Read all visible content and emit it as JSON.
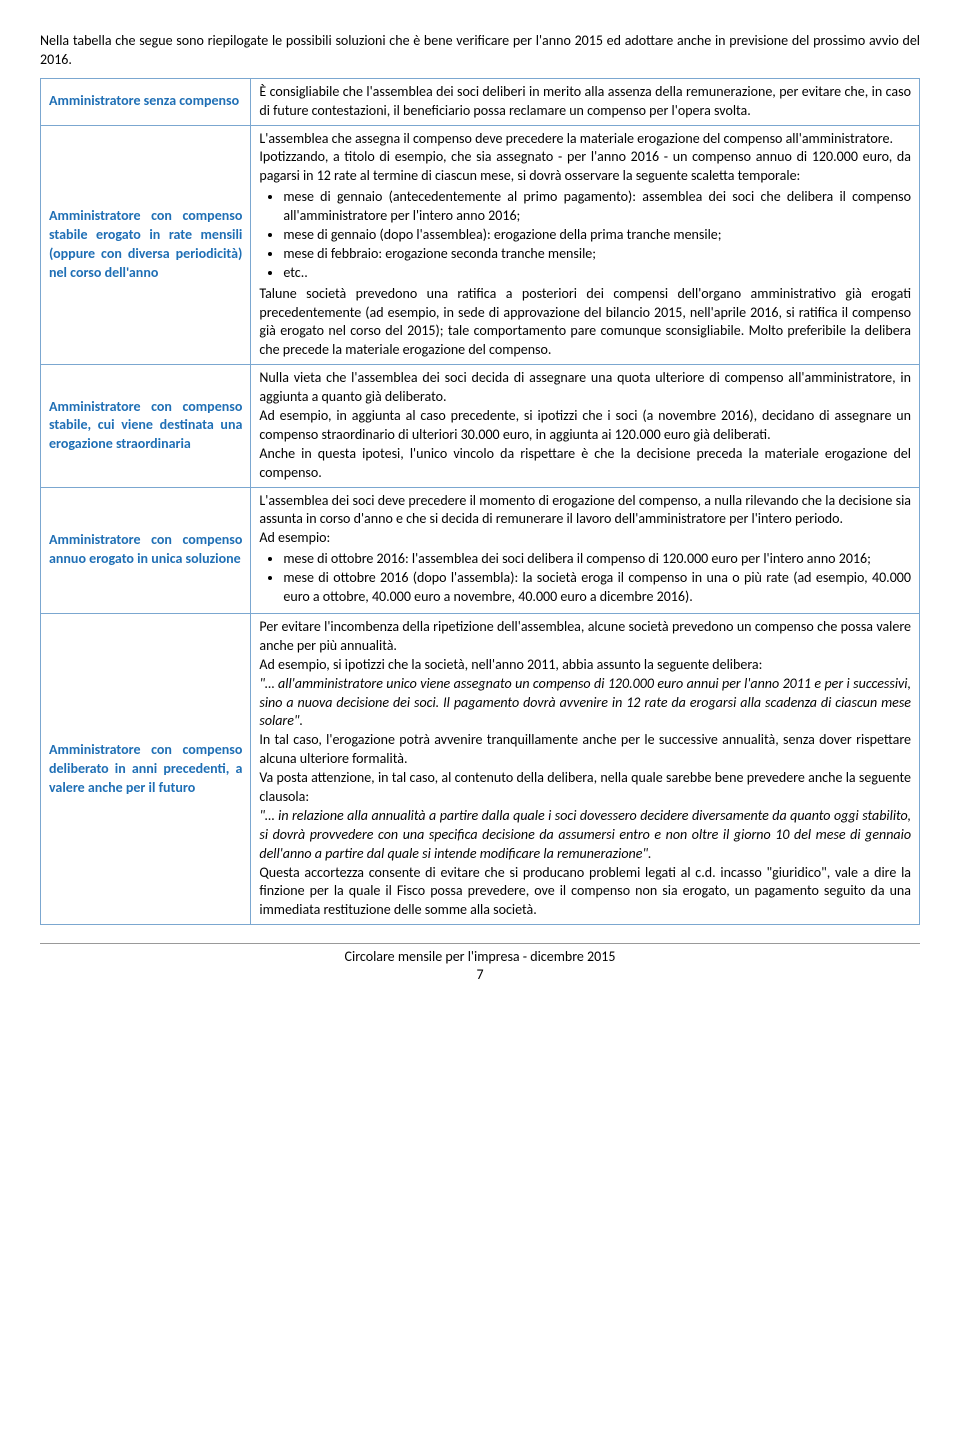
{
  "intro": "Nella tabella che segue sono riepilogate le possibili soluzioni che è bene verificare per l'anno 2015 ed adottare anche in previsione del prossimo avvio del 2016.",
  "rows": [
    {
      "left": "Amministratore senza compenso",
      "right_html": "È consigliabile che l'assemblea dei soci deliberi in merito alla assenza della remunerazione, per evitare che, in caso di future contestazioni, il beneficiario possa reclamare un compenso per l'opera svolta."
    },
    {
      "left": "Amministratore con compenso stabile erogato in rate mensili (oppure con diversa periodicità) nel corso dell'anno",
      "right_html": "L'assemblea che assegna il compenso deve precedere la materiale erogazione del compenso all'amministratore.<br>Ipotizzando, a titolo di esempio, che sia assegnato - per l'anno 2016 - un compenso annuo di 120.000 euro, da pagarsi in 12 rate al termine di ciascun mese, si dovrà osservare la seguente scaletta temporale:<ul><li>mese di gennaio (antecedentemente al primo pagamento): assemblea dei soci che delibera il compenso all'amministratore per l'intero anno 2016;</li><li>mese di gennaio (dopo l'assemblea): erogazione della prima tranche mensile;</li><li>mese di febbraio: erogazione seconda tranche mensile;</li><li>etc..</li></ul>Talune società prevedono una ratifica a posteriori dei compensi dell'organo amministrativo già erogati precedentemente (ad esempio, in sede di approvazione del bilancio 2015, nell'aprile 2016, si ratifica il compenso già erogato nel corso del 2015); tale comportamento pare comunque sconsigliabile. Molto preferibile la delibera che precede la materiale erogazione del compenso."
    },
    {
      "left": "Amministratore con compenso stabile, cui viene destinata una erogazione straordinaria",
      "right_html": "Nulla vieta che l'assemblea dei soci decida di assegnare una quota ulteriore di compenso all'amministratore, in aggiunta a quanto già deliberato.<br>Ad esempio, in aggiunta al caso precedente, si ipotizzi che i soci (a novembre 2016), decidano di assegnare un compenso straordinario di ulteriori 30.000 euro, in aggiunta ai 120.000 euro già deliberati.<br>Anche in questa ipotesi, l'unico vincolo da rispettare è che la decisione preceda la materiale erogazione del compenso."
    },
    {
      "left": "Amministratore con compenso annuo erogato in unica soluzione",
      "right_html": "L'assemblea dei soci deve precedere il momento di erogazione del compenso, a nulla rilevando che la decisione sia assunta in corso d'anno e che si decida di remunerare il lavoro dell'amministratore per l'intero periodo.<br>Ad esempio:<ul><li>mese di ottobre 2016: l'assemblea dei soci delibera il compenso di 120.000 euro per l'intero anno 2016;</li><li>mese di ottobre 2016 (dopo l'assembla): la società eroga il compenso in una o più rate (ad esempio, 40.000 euro a ottobre, 40.000 euro a novembre, 40.000 euro a dicembre 2016).</li></ul>"
    },
    {
      "left": "Amministratore con compenso deliberato in anni precedenti, a valere anche per il futuro",
      "right_html": "Per evitare l'incombenza della ripetizione dell'assemblea, alcune società prevedono un compenso che possa valere anche per più annualità.<br>Ad esempio, si ipotizzi che la società, nell'anno 2011, abbia assunto la seguente delibera:<br><em>\"… all'amministratore unico viene assegnato un compenso di 120.000 euro annui per l'anno 2011 e per i successivi, sino a nuova decisione dei soci. Il pagamento dovrà avvenire in 12 rate da erogarsi alla scadenza di ciascun mese solare\".</em><br>In tal caso, l'erogazione potrà avvenire tranquillamente anche per le successive annualità, senza dover rispettare alcuna ulteriore formalità.<br>Va posta attenzione, in tal caso, al contenuto della delibera, nella quale sarebbe bene prevedere anche la seguente clausola:<br><em>\"… in relazione alla annualità a partire dalla quale i soci dovessero decidere diversamente da quanto oggi stabilito, si dovrà provvedere con una specifica decisione da assumersi entro e non oltre il giorno 10 del mese di gennaio dell'anno a partire dal quale si intende modificare la remunerazione\".</em><br>Questa accortezza consente di evitare che si producano problemi legati al c.d. incasso \"giuridico\", vale a dire la finzione per la quale il Fisco possa prevedere, ove il compenso non sia erogato, un pagamento seguito da una immediata restituzione delle somme alla società."
    }
  ],
  "footer_line1": "Circolare mensile per l'impresa - dicembre 2015",
  "footer_page": "7"
}
